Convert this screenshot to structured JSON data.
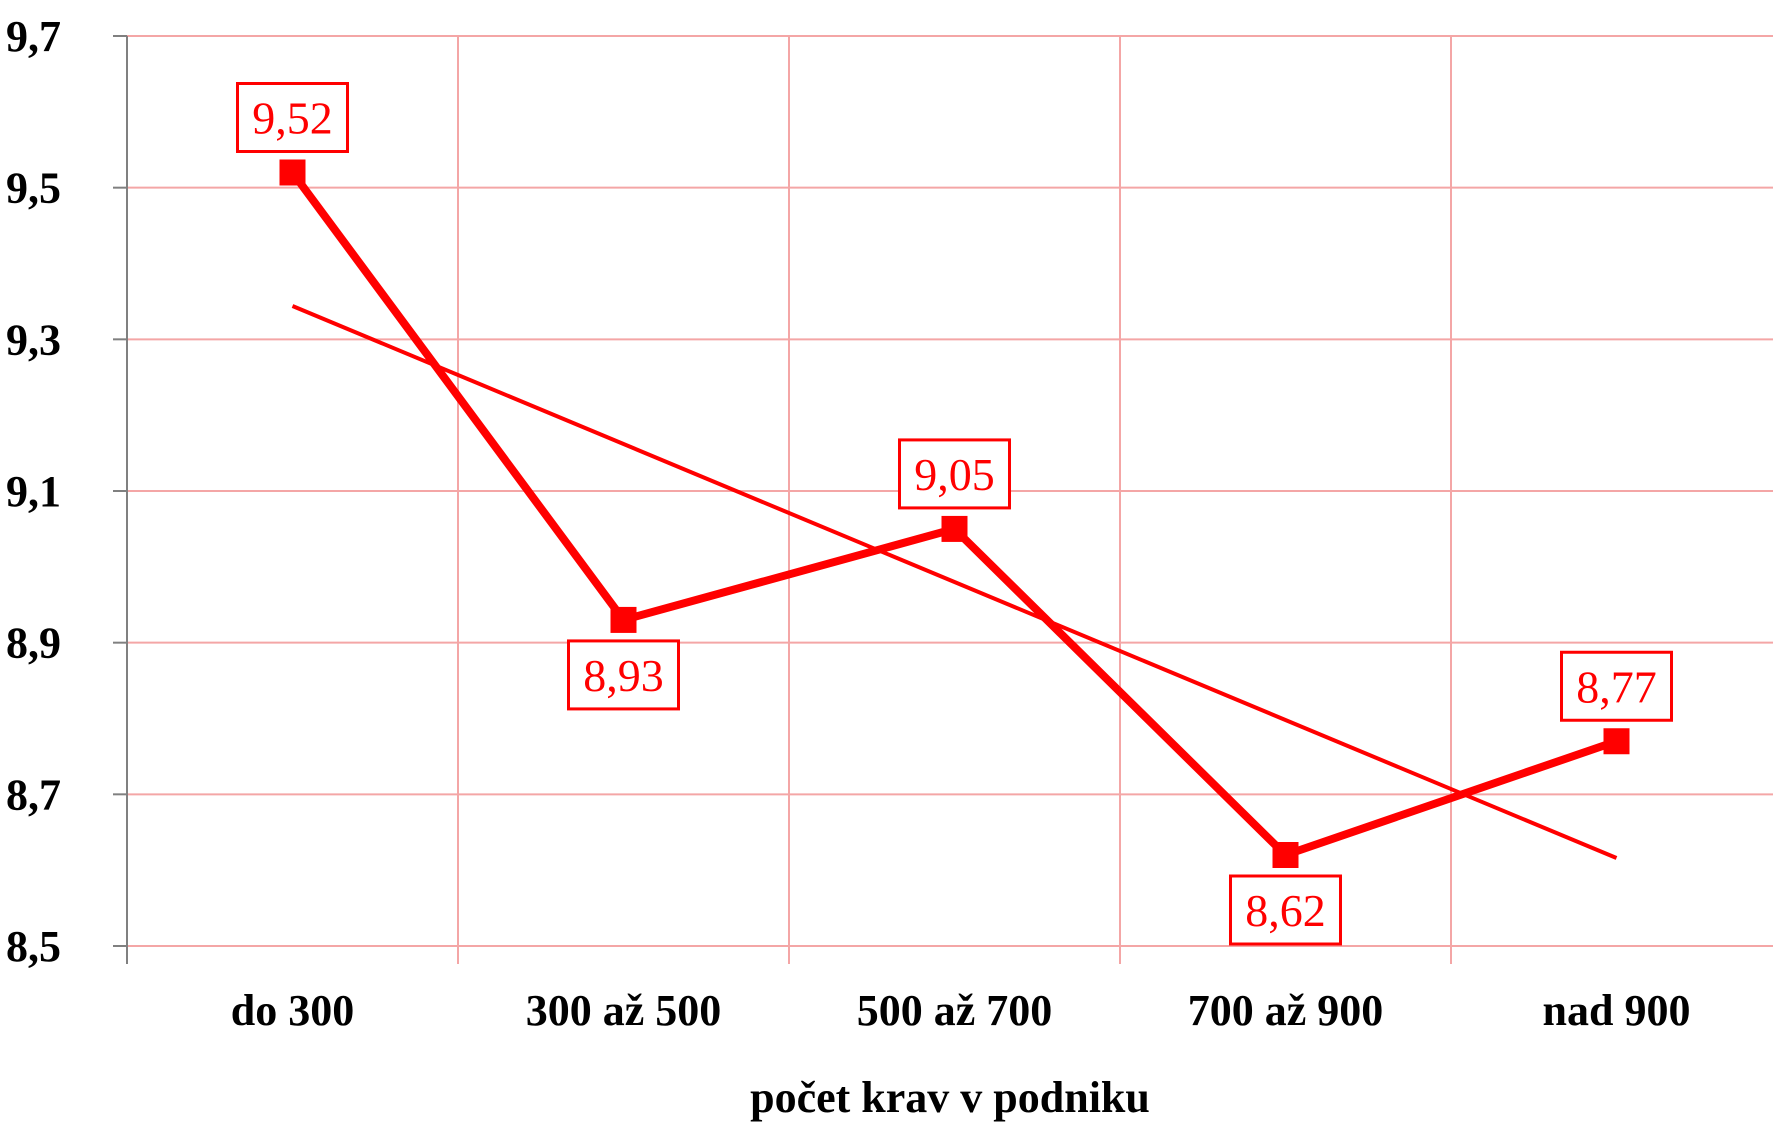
{
  "colors": {
    "series": "#ff0000",
    "grid": "#f4a6a6",
    "axis": "#808080",
    "text": "#000000"
  },
  "chart_data": {
    "type": "line",
    "title": "",
    "xlabel": "počet krav v podniku",
    "ylabel": "",
    "categories": [
      "do 300",
      "300 až 500",
      "500 až 700",
      "700 až 900",
      "nad 900"
    ],
    "series": [
      {
        "values": [
          9.52,
          8.93,
          9.05,
          8.62,
          8.77
        ],
        "marker": "square",
        "data_labels": [
          "9,52",
          "8,93",
          "9,05",
          "8,62",
          "8,77"
        ]
      }
    ],
    "trendline": {
      "type": "linear",
      "start_value": 9.344,
      "end_value": 8.616
    },
    "ylim": [
      8.5,
      9.7
    ],
    "yticks": [
      8.5,
      8.7,
      8.9,
      9.1,
      9.3,
      9.5,
      9.7
    ],
    "ytick_labels": [
      "8,5",
      "8,7",
      "8,9",
      "9,1",
      "9,3",
      "9,5",
      "9,7"
    ],
    "grid": true,
    "legend": "none"
  }
}
